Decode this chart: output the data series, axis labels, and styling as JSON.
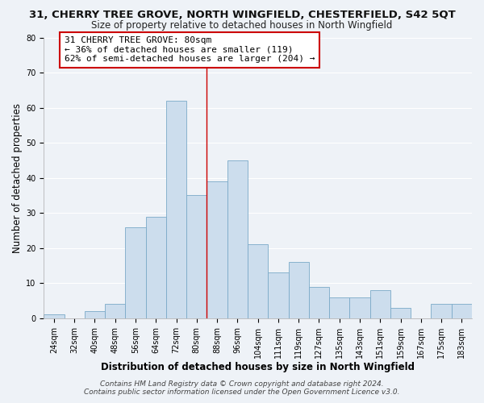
{
  "title": "31, CHERRY TREE GROVE, NORTH WINGFIELD, CHESTERFIELD, S42 5QT",
  "subtitle": "Size of property relative to detached houses in North Wingfield",
  "xlabel": "Distribution of detached houses by size in North Wingfield",
  "ylabel": "Number of detached properties",
  "footer_line1": "Contains HM Land Registry data © Crown copyright and database right 2024.",
  "footer_line2": "Contains public sector information licensed under the Open Government Licence v3.0.",
  "bin_labels": [
    "24sqm",
    "32sqm",
    "40sqm",
    "48sqm",
    "56sqm",
    "64sqm",
    "72sqm",
    "80sqm",
    "88sqm",
    "96sqm",
    "104sqm",
    "111sqm",
    "119sqm",
    "127sqm",
    "135sqm",
    "143sqm",
    "151sqm",
    "159sqm",
    "167sqm",
    "175sqm",
    "183sqm"
  ],
  "bin_values": [
    1,
    0,
    2,
    4,
    26,
    29,
    62,
    35,
    39,
    45,
    21,
    13,
    16,
    9,
    6,
    6,
    8,
    3,
    0,
    4,
    4
  ],
  "bar_color": "#ccdded",
  "bar_edge_color": "#7aaac8",
  "highlight_bar_index": 7,
  "highlight_line_color": "#cc0000",
  "annotation_line1": "31 CHERRY TREE GROVE: 80sqm",
  "annotation_line2": "← 36% of detached houses are smaller (119)",
  "annotation_line3": "62% of semi-detached houses are larger (204) →",
  "annotation_box_facecolor": "#ffffff",
  "annotation_box_edgecolor": "#cc0000",
  "ylim": [
    0,
    80
  ],
  "yticks": [
    0,
    10,
    20,
    30,
    40,
    50,
    60,
    70,
    80
  ],
  "bg_color": "#eef2f7",
  "grid_color": "#ffffff",
  "title_fontsize": 9.5,
  "subtitle_fontsize": 8.5,
  "axis_label_fontsize": 8.5,
  "tick_fontsize": 7,
  "annotation_fontsize": 8,
  "footer_fontsize": 6.5
}
